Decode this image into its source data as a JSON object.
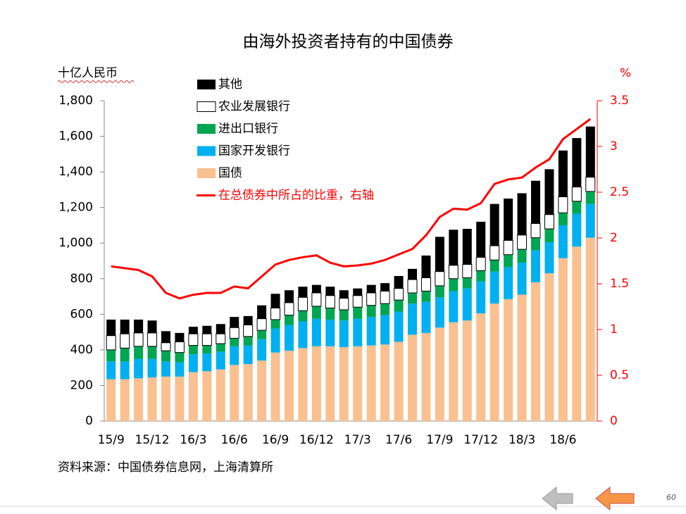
{
  "chart_data": {
    "type": "bar",
    "stacked": true,
    "title": "由海外投资者持有的中国债券",
    "y_label": "十亿人民币",
    "y2_label": "%",
    "source": "资料来源：中国债券信息网，上海清算所",
    "categories": [
      "15/9",
      null,
      null,
      "15/12",
      null,
      null,
      "16/3",
      null,
      null,
      "16/6",
      null,
      null,
      "16/9",
      null,
      null,
      "16/12",
      null,
      null,
      "17/3",
      null,
      null,
      "17/6",
      null,
      null,
      "17/9",
      null,
      null,
      "17/12",
      null,
      null,
      "18/3",
      null,
      null,
      "18/6",
      null,
      null
    ],
    "ylim": [
      0,
      1800
    ],
    "yticks": [
      0,
      200,
      400,
      600,
      800,
      {
        "value": 1000,
        "label": "1,000"
      },
      {
        "value": 1200,
        "label": "1,200"
      },
      {
        "value": 1400,
        "label": "1,400"
      },
      {
        "value": 1600,
        "label": "1,600"
      },
      {
        "value": 1800,
        "label": "1,800"
      }
    ],
    "y2lim": [
      0,
      3.5
    ],
    "y2ticks": [
      0,
      0.5,
      1,
      1.5,
      2,
      2.5,
      3,
      3.5
    ],
    "series": [
      {
        "name": "国债",
        "color": "#fac090",
        "values": [
          235,
          235,
          240,
          245,
          250,
          250,
          275,
          280,
          290,
          315,
          320,
          340,
          385,
          395,
          410,
          420,
          420,
          415,
          420,
          425,
          430,
          445,
          485,
          495,
          525,
          555,
          565,
          605,
          660,
          685,
          710,
          780,
          830,
          915,
          980,
          1030
        ]
      },
      {
        "name": "国家开发银行",
        "color": "#00b0f0",
        "values": [
          100,
          100,
          110,
          105,
          85,
          80,
          100,
          100,
          100,
          105,
          105,
          120,
          135,
          145,
          150,
          155,
          150,
          150,
          155,
          160,
          165,
          170,
          175,
          175,
          170,
          175,
          180,
          180,
          180,
          180,
          180,
          180,
          175,
          185,
          185,
          190
        ]
      },
      {
        "name": "进出口银行",
        "color": "#00a651",
        "values": [
          65,
          75,
          70,
          70,
          60,
          55,
          50,
          45,
          45,
          45,
          50,
          50,
          50,
          55,
          60,
          70,
          65,
          60,
          65,
          65,
          65,
          65,
          60,
          60,
          65,
          70,
          60,
          60,
          65,
          70,
          75,
          70,
          75,
          70,
          70,
          70
        ]
      },
      {
        "name": "农业发展银行",
        "color": "#ffffff",
        "values": [
          80,
          80,
          75,
          75,
          45,
          60,
          65,
          65,
          55,
          60,
          65,
          65,
          65,
          70,
          75,
          75,
          70,
          65,
          65,
          70,
          70,
          65,
          75,
          75,
          80,
          75,
          75,
          75,
          80,
          80,
          80,
          80,
          80,
          90,
          80,
          80
        ]
      },
      {
        "name": "其他",
        "color": "#000000",
        "values": [
          90,
          80,
          75,
          70,
          65,
          50,
          40,
          45,
          55,
          60,
          50,
          75,
          80,
          70,
          60,
          45,
          50,
          45,
          40,
          45,
          45,
          70,
          60,
          125,
          195,
          200,
          200,
          200,
          235,
          235,
          235,
          240,
          255,
          260,
          275,
          285
        ]
      },
      {
        "name": "在总债券中所占的比重，右轴",
        "color": "#ff0000",
        "type": "line",
        "axis": "y2",
        "values": [
          1.69,
          1.67,
          1.65,
          1.58,
          1.4,
          1.34,
          1.38,
          1.4,
          1.4,
          1.47,
          1.45,
          1.58,
          1.71,
          1.76,
          1.79,
          1.81,
          1.73,
          1.69,
          1.7,
          1.72,
          1.76,
          1.82,
          1.88,
          2.03,
          2.23,
          2.32,
          2.31,
          2.38,
          2.59,
          2.64,
          2.66,
          2.77,
          2.86,
          3.08,
          3.19,
          3.3
        ]
      }
    ]
  },
  "page_number": "60"
}
